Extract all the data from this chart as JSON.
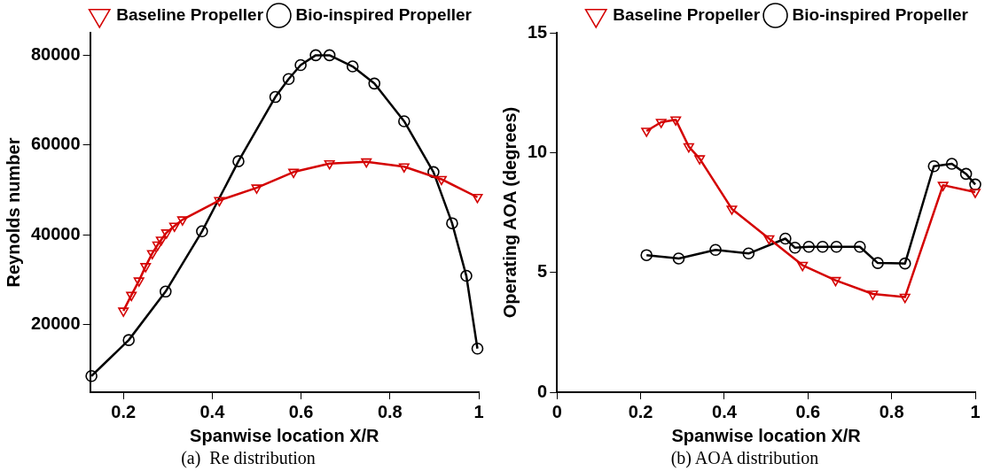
{
  "chart_data": [
    {
      "type": "line",
      "xlabel": "Spanwise location X/R",
      "ylabel": "Reynolds number",
      "annotations": [
        "(a)  Re distribution"
      ],
      "xlim": [
        0.125,
        1
      ],
      "xticks": [
        0.2,
        0.4,
        0.6,
        0.8,
        1
      ],
      "ylim": [
        5000,
        85000
      ],
      "yticks": [
        20000,
        40000,
        60000,
        80000
      ],
      "grid": false,
      "legend": "top",
      "line_style": "solid",
      "series": [
        {
          "name": "Baseline Propeller",
          "color": "#d40000",
          "marker": "triangle",
          "x": [
            0.2,
            0.218,
            0.235,
            0.25,
            0.265,
            0.277,
            0.285,
            0.297,
            0.315,
            0.333,
            0.416,
            0.5,
            0.583,
            0.664,
            0.747,
            0.832,
            0.916,
            0.997
          ],
          "values": [
            23100,
            26600,
            29800,
            33000,
            35900,
            37800,
            38900,
            40500,
            42000,
            43400,
            47700,
            50500,
            54000,
            55900,
            56300,
            55200,
            52400,
            48400
          ]
        },
        {
          "name": "Bio-inspired Propeller",
          "color": "#000000",
          "marker": "circle",
          "x": [
            0.128,
            0.212,
            0.295,
            0.377,
            0.459,
            0.542,
            0.572,
            0.599,
            0.633,
            0.664,
            0.716,
            0.765,
            0.832,
            0.898,
            0.94,
            0.972,
            0.997
          ],
          "values": [
            8600,
            16600,
            27400,
            40800,
            56400,
            70700,
            74700,
            77800,
            80000,
            80000,
            77500,
            73700,
            65300,
            54000,
            42600,
            30900,
            14700
          ]
        }
      ]
    },
    {
      "type": "line",
      "xlabel": "Spanwise location X/R",
      "ylabel": "Operating AOA (degrees)",
      "annotations": [
        "(b) AOA distribution"
      ],
      "xlim": [
        0,
        1
      ],
      "xticks": [
        0,
        0.2,
        0.4,
        0.6,
        0.8,
        1
      ],
      "ylim": [
        0,
        15
      ],
      "yticks": [
        0,
        5,
        10,
        15
      ],
      "grid": false,
      "legend": "top",
      "line_style": "solid",
      "series": [
        {
          "name": "Baseline Propeller",
          "color": "#d40000",
          "marker": "triangle",
          "x": [
            0.214,
            0.249,
            0.284,
            0.315,
            0.341,
            0.418,
            0.507,
            0.587,
            0.666,
            0.755,
            0.832,
            0.923,
            1.0
          ],
          "values": [
            10.9,
            11.27,
            11.37,
            10.25,
            9.75,
            7.65,
            6.41,
            5.3,
            4.67,
            4.1,
            3.97,
            8.64,
            8.35
          ]
        },
        {
          "name": "Bio-inspired Propeller",
          "color": "#000000",
          "marker": "circle",
          "x": [
            0.214,
            0.291,
            0.379,
            0.458,
            0.546,
            0.569,
            0.602,
            0.635,
            0.668,
            0.724,
            0.767,
            0.832,
            0.901,
            0.944,
            0.978,
            1.0
          ],
          "values": [
            5.72,
            5.58,
            5.94,
            5.79,
            6.41,
            6.03,
            6.07,
            6.07,
            6.07,
            6.07,
            5.39,
            5.37,
            9.43,
            9.53,
            9.11,
            8.67
          ]
        }
      ]
    }
  ]
}
